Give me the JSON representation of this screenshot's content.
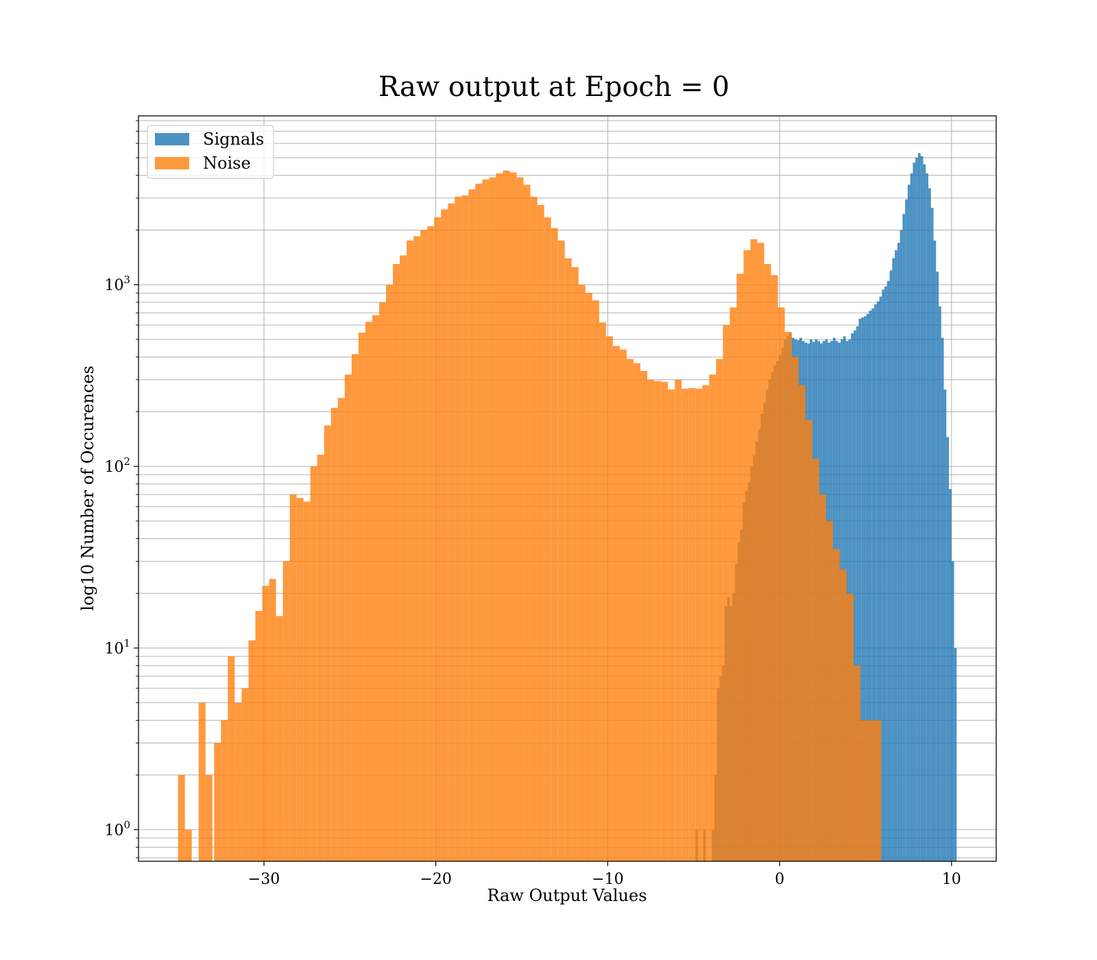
{
  "chart_data": {
    "type": "bar",
    "title": "Raw output at Epoch = 0",
    "xlabel": "Raw Output Values",
    "ylabel": "log10 Number of Occurences",
    "xlim": [
      -37.3,
      12.6
    ],
    "ylim": [
      0.67,
      8500
    ],
    "yscale": "log",
    "grid": true,
    "legend_position": "top-left",
    "x_ticks": [
      {
        "value": -30,
        "label": "−30"
      },
      {
        "value": -20,
        "label": "−20"
      },
      {
        "value": -10,
        "label": "−10"
      },
      {
        "value": 0,
        "label": "0"
      },
      {
        "value": 10,
        "label": "10"
      }
    ],
    "y_ticks": [
      {
        "value": 1,
        "base": "10",
        "exp": "0"
      },
      {
        "value": 10,
        "base": "10",
        "exp": "1"
      },
      {
        "value": 100,
        "base": "10",
        "exp": "2"
      },
      {
        "value": 1000,
        "base": "10",
        "exp": "3"
      }
    ],
    "series": [
      {
        "name": "Signals",
        "color": "#1f77b4",
        "opacity": 0.8,
        "bins": [
          [
            -4.9,
            -4.75,
            1
          ],
          [
            -4.45,
            -4.3,
            1
          ],
          [
            -3.95,
            -3.8,
            1
          ],
          [
            -3.8,
            -3.65,
            2
          ],
          [
            -3.65,
            -3.5,
            6
          ],
          [
            -3.5,
            -3.35,
            7
          ],
          [
            -3.35,
            -3.2,
            8
          ],
          [
            -3.2,
            -3.05,
            17
          ],
          [
            -3.05,
            -2.9,
            19
          ],
          [
            -2.9,
            -2.75,
            17
          ],
          [
            -2.75,
            -2.6,
            20
          ],
          [
            -2.6,
            -2.45,
            29
          ],
          [
            -2.45,
            -2.3,
            38
          ],
          [
            -2.3,
            -2.15,
            45
          ],
          [
            -2.15,
            -2.0,
            63
          ],
          [
            -2.0,
            -1.85,
            73
          ],
          [
            -1.85,
            -1.7,
            82
          ],
          [
            -1.7,
            -1.55,
            100
          ],
          [
            -1.55,
            -1.4,
            115
          ],
          [
            -1.4,
            -1.25,
            137
          ],
          [
            -1.25,
            -1.1,
            160
          ],
          [
            -1.1,
            -0.95,
            195
          ],
          [
            -0.95,
            -0.8,
            225
          ],
          [
            -0.8,
            -0.65,
            265
          ],
          [
            -0.65,
            -0.5,
            300
          ],
          [
            -0.5,
            -0.35,
            330
          ],
          [
            -0.35,
            -0.2,
            360
          ],
          [
            -0.2,
            -0.05,
            380
          ],
          [
            -0.05,
            0.1,
            410
          ],
          [
            0.1,
            0.25,
            450
          ],
          [
            0.25,
            0.4,
            500
          ],
          [
            0.4,
            0.55,
            520
          ],
          [
            0.55,
            0.7,
            540
          ],
          [
            0.7,
            0.85,
            510
          ],
          [
            0.85,
            1.0,
            500
          ],
          [
            1.0,
            1.15,
            495
          ],
          [
            1.15,
            1.3,
            510
          ],
          [
            1.3,
            1.45,
            490
          ],
          [
            1.45,
            1.6,
            480
          ],
          [
            1.6,
            1.75,
            475
          ],
          [
            1.75,
            1.9,
            500
          ],
          [
            1.9,
            2.05,
            485
          ],
          [
            2.05,
            2.2,
            500
          ],
          [
            2.2,
            2.35,
            490
          ],
          [
            2.35,
            2.5,
            475
          ],
          [
            2.5,
            2.65,
            490
          ],
          [
            2.65,
            2.8,
            500
          ],
          [
            2.8,
            2.95,
            480
          ],
          [
            2.95,
            3.1,
            490
          ],
          [
            3.1,
            3.25,
            510
          ],
          [
            3.25,
            3.4,
            490
          ],
          [
            3.4,
            3.55,
            480
          ],
          [
            3.55,
            3.7,
            500
          ],
          [
            3.7,
            3.85,
            520
          ],
          [
            3.85,
            4.0,
            490
          ],
          [
            4.0,
            4.15,
            500
          ],
          [
            4.15,
            4.3,
            540
          ],
          [
            4.3,
            4.45,
            560
          ],
          [
            4.45,
            4.6,
            590
          ],
          [
            4.6,
            4.75,
            650
          ],
          [
            4.75,
            4.9,
            660
          ],
          [
            4.9,
            5.05,
            670
          ],
          [
            5.05,
            5.2,
            690
          ],
          [
            5.2,
            5.35,
            720
          ],
          [
            5.35,
            5.5,
            740
          ],
          [
            5.5,
            5.65,
            780
          ],
          [
            5.65,
            5.8,
            810
          ],
          [
            5.8,
            5.95,
            860
          ],
          [
            5.95,
            6.1,
            940
          ],
          [
            6.1,
            6.25,
            980
          ],
          [
            6.25,
            6.4,
            1050
          ],
          [
            6.4,
            6.55,
            1200
          ],
          [
            6.55,
            6.7,
            1400
          ],
          [
            6.7,
            6.85,
            1550
          ],
          [
            6.85,
            7.0,
            1700
          ],
          [
            7.0,
            7.15,
            2000
          ],
          [
            7.15,
            7.3,
            2450
          ],
          [
            7.3,
            7.45,
            2950
          ],
          [
            7.45,
            7.6,
            3550
          ],
          [
            7.6,
            7.75,
            4100
          ],
          [
            7.75,
            7.9,
            4700
          ],
          [
            7.9,
            8.05,
            5000
          ],
          [
            8.05,
            8.2,
            5300
          ],
          [
            8.2,
            8.35,
            5100
          ],
          [
            8.35,
            8.5,
            4600
          ],
          [
            8.5,
            8.65,
            4100
          ],
          [
            8.65,
            8.8,
            3400
          ],
          [
            8.8,
            8.95,
            2650
          ],
          [
            8.95,
            9.1,
            1750
          ],
          [
            9.1,
            9.25,
            1180
          ],
          [
            9.25,
            9.4,
            760
          ],
          [
            9.4,
            9.55,
            510
          ],
          [
            9.55,
            9.7,
            265
          ],
          [
            9.7,
            9.85,
            145
          ],
          [
            9.85,
            10.0,
            75
          ],
          [
            10.0,
            10.15,
            30
          ],
          [
            10.15,
            10.3,
            10
          ]
        ]
      },
      {
        "name": "Noise",
        "color": "#ff7f0e",
        "opacity": 0.8,
        "bins": [
          [
            -35.0,
            -34.6,
            2
          ],
          [
            -34.6,
            -34.2,
            1
          ],
          [
            -33.8,
            -33.4,
            5
          ],
          [
            -33.4,
            -33.0,
            2
          ],
          [
            -32.9,
            -32.5,
            3
          ],
          [
            -32.5,
            -32.1,
            4
          ],
          [
            -32.1,
            -31.7,
            9
          ],
          [
            -31.7,
            -31.3,
            5
          ],
          [
            -31.3,
            -30.9,
            6
          ],
          [
            -30.9,
            -30.5,
            11
          ],
          [
            -30.5,
            -30.1,
            16
          ],
          [
            -30.1,
            -29.7,
            22
          ],
          [
            -29.7,
            -29.3,
            24
          ],
          [
            -29.3,
            -28.9,
            15
          ],
          [
            -28.9,
            -28.5,
            30
          ],
          [
            -28.5,
            -28.1,
            70
          ],
          [
            -28.1,
            -27.7,
            67
          ],
          [
            -27.7,
            -27.3,
            64
          ],
          [
            -27.3,
            -26.9,
            100
          ],
          [
            -26.9,
            -26.5,
            116
          ],
          [
            -26.5,
            -26.1,
            168
          ],
          [
            -26.1,
            -25.7,
            210
          ],
          [
            -25.7,
            -25.3,
            238
          ],
          [
            -25.3,
            -24.9,
            320
          ],
          [
            -24.9,
            -24.5,
            415
          ],
          [
            -24.5,
            -24.1,
            545
          ],
          [
            -24.1,
            -23.7,
            625
          ],
          [
            -23.7,
            -23.3,
            680
          ],
          [
            -23.3,
            -22.9,
            800
          ],
          [
            -22.9,
            -22.5,
            1000
          ],
          [
            -22.5,
            -22.1,
            1300
          ],
          [
            -22.1,
            -21.7,
            1450
          ],
          [
            -21.7,
            -21.3,
            1750
          ],
          [
            -21.3,
            -20.9,
            1850
          ],
          [
            -20.9,
            -20.5,
            2000
          ],
          [
            -20.5,
            -20.1,
            2100
          ],
          [
            -20.1,
            -19.7,
            2350
          ],
          [
            -19.7,
            -19.3,
            2600
          ],
          [
            -19.3,
            -18.9,
            2800
          ],
          [
            -18.9,
            -18.5,
            3050
          ],
          [
            -18.5,
            -18.1,
            3100
          ],
          [
            -18.1,
            -17.7,
            3350
          ],
          [
            -17.7,
            -17.3,
            3600
          ],
          [
            -17.3,
            -16.9,
            3800
          ],
          [
            -16.9,
            -16.5,
            3900
          ],
          [
            -16.5,
            -16.1,
            4100
          ],
          [
            -16.1,
            -15.7,
            4250
          ],
          [
            -15.7,
            -15.3,
            4150
          ],
          [
            -15.3,
            -14.9,
            3900
          ],
          [
            -14.9,
            -14.5,
            3550
          ],
          [
            -14.5,
            -14.1,
            3050
          ],
          [
            -14.1,
            -13.7,
            2750
          ],
          [
            -13.7,
            -13.3,
            2350
          ],
          [
            -13.3,
            -12.9,
            2050
          ],
          [
            -12.9,
            -12.5,
            1750
          ],
          [
            -12.5,
            -12.1,
            1400
          ],
          [
            -12.1,
            -11.7,
            1250
          ],
          [
            -11.7,
            -11.3,
            1000
          ],
          [
            -11.3,
            -10.9,
            900
          ],
          [
            -10.9,
            -10.5,
            820
          ],
          [
            -10.5,
            -10.1,
            620
          ],
          [
            -10.1,
            -9.7,
            520
          ],
          [
            -9.7,
            -9.3,
            460
          ],
          [
            -9.3,
            -8.9,
            440
          ],
          [
            -8.9,
            -8.5,
            390
          ],
          [
            -8.5,
            -8.1,
            370
          ],
          [
            -8.1,
            -7.7,
            335
          ],
          [
            -7.7,
            -7.3,
            300
          ],
          [
            -7.3,
            -6.9,
            295
          ],
          [
            -6.9,
            -6.5,
            292
          ],
          [
            -6.5,
            -6.1,
            265
          ],
          [
            -6.1,
            -5.7,
            300
          ],
          [
            -5.7,
            -5.3,
            268
          ],
          [
            -5.3,
            -4.9,
            270
          ],
          [
            -4.9,
            -4.5,
            268
          ],
          [
            -4.5,
            -4.1,
            280
          ],
          [
            -4.1,
            -3.7,
            320
          ],
          [
            -3.7,
            -3.3,
            390
          ],
          [
            -3.3,
            -2.9,
            600
          ],
          [
            -2.9,
            -2.5,
            750
          ],
          [
            -2.5,
            -2.1,
            1150
          ],
          [
            -2.1,
            -1.7,
            1550
          ],
          [
            -1.7,
            -1.3,
            1780
          ],
          [
            -1.3,
            -0.9,
            1700
          ],
          [
            -0.9,
            -0.5,
            1300
          ],
          [
            -0.5,
            -0.1,
            1130
          ],
          [
            -0.1,
            0.3,
            750
          ],
          [
            0.3,
            0.7,
            550
          ],
          [
            0.7,
            1.1,
            400
          ],
          [
            1.1,
            1.5,
            280
          ],
          [
            1.5,
            1.9,
            180
          ],
          [
            1.9,
            2.3,
            110
          ],
          [
            2.3,
            2.7,
            70
          ],
          [
            2.7,
            3.1,
            50
          ],
          [
            3.1,
            3.5,
            35
          ],
          [
            3.5,
            3.9,
            27
          ],
          [
            3.9,
            4.3,
            20
          ],
          [
            4.3,
            4.7,
            8
          ],
          [
            4.7,
            5.1,
            4
          ],
          [
            5.1,
            5.5,
            4
          ],
          [
            5.5,
            5.9,
            4
          ]
        ]
      }
    ]
  }
}
